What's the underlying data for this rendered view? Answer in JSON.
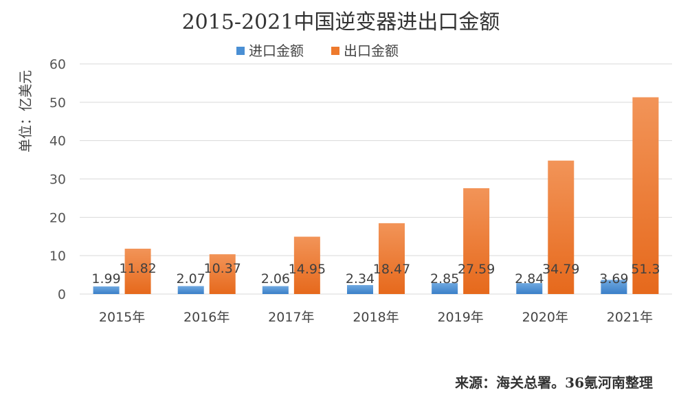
{
  "chart_data": {
    "type": "bar",
    "title": "2015-2021中国逆变器进出口金额",
    "ylabel": "单位：亿美元",
    "xlabel": "",
    "categories": [
      "2015年",
      "2016年",
      "2017年",
      "2018年",
      "2019年",
      "2020年",
      "2021年"
    ],
    "series": [
      {
        "name": "进口金额",
        "color": "#4a8fd4",
        "values": [
          1.99,
          2.07,
          2.06,
          2.34,
          2.85,
          2.84,
          3.69
        ]
      },
      {
        "name": "出口金额",
        "color": "#ee7a2d",
        "values": [
          11.82,
          10.37,
          14.95,
          18.47,
          27.59,
          34.79,
          51.3
        ]
      }
    ],
    "ylim": [
      0,
      60
    ],
    "yticks": [
      "0",
      "10",
      "20",
      "30",
      "40",
      "50",
      "60"
    ],
    "data_labels": [
      [
        "1.99",
        "2.07",
        "2.06",
        "2.34",
        "2.85",
        "2.84",
        "3.69"
      ],
      [
        "11.82",
        "10.37",
        "14.95",
        "18.47",
        "27.59",
        "34.79",
        "51.3"
      ]
    ],
    "grid": true,
    "legend_position": "top"
  },
  "source": "来源：海关总署。36氪河南整理"
}
